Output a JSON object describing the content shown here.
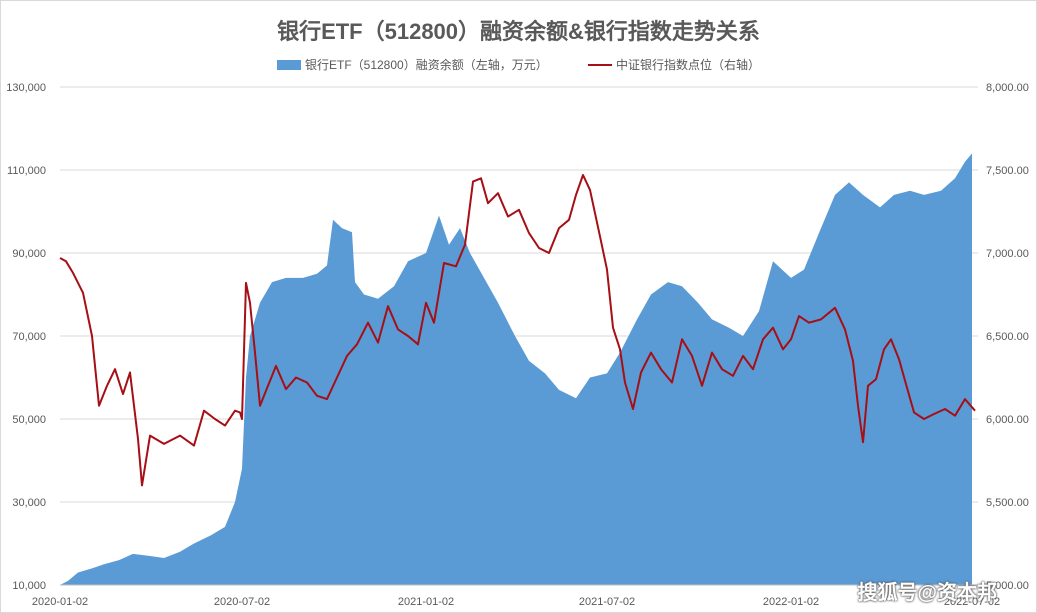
{
  "chart_data": {
    "type": "area+line",
    "title": "银行ETF（512800）融资余额&银行指数走势关系",
    "series": [
      {
        "name": "银行ETF（512800）融资余额（左轴，万元）",
        "kind": "area",
        "axis": "left",
        "color": "#5b9bd5",
        "points": [
          [
            "2020-01-02",
            10000
          ],
          [
            "2020-01-10",
            11000
          ],
          [
            "2020-01-20",
            13000
          ],
          [
            "2020-02-03",
            14000
          ],
          [
            "2020-02-15",
            15000
          ],
          [
            "2020-03-01",
            16000
          ],
          [
            "2020-03-15",
            17500
          ],
          [
            "2020-04-01",
            17000
          ],
          [
            "2020-04-15",
            16500
          ],
          [
            "2020-05-01",
            18000
          ],
          [
            "2020-05-15",
            20000
          ],
          [
            "2020-06-01",
            22000
          ],
          [
            "2020-06-15",
            24000
          ],
          [
            "2020-06-25",
            30000
          ],
          [
            "2020-07-02",
            38000
          ],
          [
            "2020-07-06",
            60000
          ],
          [
            "2020-07-10",
            70000
          ],
          [
            "2020-07-20",
            78000
          ],
          [
            "2020-08-01",
            83000
          ],
          [
            "2020-08-15",
            84000
          ],
          [
            "2020-09-01",
            84000
          ],
          [
            "2020-09-15",
            85000
          ],
          [
            "2020-09-25",
            87000
          ],
          [
            "2020-10-01",
            98000
          ],
          [
            "2020-10-10",
            96000
          ],
          [
            "2020-10-20",
            95000
          ],
          [
            "2020-10-23",
            83000
          ],
          [
            "2020-11-01",
            80000
          ],
          [
            "2020-11-15",
            79000
          ],
          [
            "2020-12-01",
            82000
          ],
          [
            "2020-12-15",
            88000
          ],
          [
            "2021-01-02",
            90000
          ],
          [
            "2021-01-15",
            99000
          ],
          [
            "2021-01-25",
            92000
          ],
          [
            "2021-02-05",
            96000
          ],
          [
            "2021-02-15",
            90000
          ],
          [
            "2021-03-01",
            84000
          ],
          [
            "2021-03-15",
            78000
          ],
          [
            "2021-04-01",
            70000
          ],
          [
            "2021-04-15",
            64000
          ],
          [
            "2021-05-01",
            61000
          ],
          [
            "2021-05-15",
            57000
          ],
          [
            "2021-06-01",
            55000
          ],
          [
            "2021-06-15",
            60000
          ],
          [
            "2021-07-02",
            61000
          ],
          [
            "2021-07-15",
            66000
          ],
          [
            "2021-08-01",
            74000
          ],
          [
            "2021-08-15",
            80000
          ],
          [
            "2021-09-01",
            83000
          ],
          [
            "2021-09-15",
            82000
          ],
          [
            "2021-10-01",
            78000
          ],
          [
            "2021-10-15",
            74000
          ],
          [
            "2021-11-01",
            72000
          ],
          [
            "2021-11-15",
            70000
          ],
          [
            "2021-12-01",
            76000
          ],
          [
            "2021-12-15",
            88000
          ],
          [
            "2022-01-02",
            84000
          ],
          [
            "2022-01-15",
            86000
          ],
          [
            "2022-02-01",
            96000
          ],
          [
            "2022-02-15",
            104000
          ],
          [
            "2022-03-01",
            107000
          ],
          [
            "2022-03-15",
            104000
          ],
          [
            "2022-04-01",
            101000
          ],
          [
            "2022-04-15",
            104000
          ],
          [
            "2022-05-01",
            105000
          ],
          [
            "2022-05-15",
            104000
          ],
          [
            "2022-06-01",
            105000
          ],
          [
            "2022-06-15",
            108000
          ],
          [
            "2022-06-25",
            112000
          ],
          [
            "2022-07-02",
            114000
          ]
        ]
      },
      {
        "name": "中证银行指数点位（右轴）",
        "kind": "line",
        "axis": "right",
        "color": "#a50f15",
        "points": [
          [
            "2020-01-02",
            6970
          ],
          [
            "2020-01-08",
            6950
          ],
          [
            "2020-01-15",
            6880
          ],
          [
            "2020-01-25",
            6760
          ],
          [
            "2020-02-03",
            6500
          ],
          [
            "2020-02-10",
            6080
          ],
          [
            "2020-02-18",
            6200
          ],
          [
            "2020-02-26",
            6300
          ],
          [
            "2020-03-05",
            6150
          ],
          [
            "2020-03-12",
            6280
          ],
          [
            "2020-03-20",
            5880
          ],
          [
            "2020-03-24",
            5600
          ],
          [
            "2020-04-01",
            5900
          ],
          [
            "2020-04-15",
            5850
          ],
          [
            "2020-05-01",
            5900
          ],
          [
            "2020-05-15",
            5840
          ],
          [
            "2020-05-25",
            6050
          ],
          [
            "2020-06-05",
            6000
          ],
          [
            "2020-06-15",
            5960
          ],
          [
            "2020-06-25",
            6050
          ],
          [
            "2020-06-30",
            6040
          ],
          [
            "2020-07-02",
            6000
          ],
          [
            "2020-07-06",
            6820
          ],
          [
            "2020-07-10",
            6700
          ],
          [
            "2020-07-15",
            6400
          ],
          [
            "2020-07-20",
            6080
          ],
          [
            "2020-07-28",
            6200
          ],
          [
            "2020-08-05",
            6320
          ],
          [
            "2020-08-15",
            6180
          ],
          [
            "2020-08-25",
            6250
          ],
          [
            "2020-09-05",
            6220
          ],
          [
            "2020-09-15",
            6140
          ],
          [
            "2020-09-25",
            6120
          ],
          [
            "2020-10-05",
            6250
          ],
          [
            "2020-10-15",
            6380
          ],
          [
            "2020-10-25",
            6450
          ],
          [
            "2020-11-05",
            6580
          ],
          [
            "2020-11-15",
            6460
          ],
          [
            "2020-11-25",
            6680
          ],
          [
            "2020-12-05",
            6540
          ],
          [
            "2020-12-15",
            6500
          ],
          [
            "2020-12-25",
            6450
          ],
          [
            "2021-01-02",
            6700
          ],
          [
            "2021-01-10",
            6580
          ],
          [
            "2021-01-20",
            6940
          ],
          [
            "2021-02-01",
            6920
          ],
          [
            "2021-02-10",
            7050
          ],
          [
            "2021-02-18",
            7430
          ],
          [
            "2021-02-26",
            7450
          ],
          [
            "2021-03-05",
            7300
          ],
          [
            "2021-03-15",
            7360
          ],
          [
            "2021-03-25",
            7220
          ],
          [
            "2021-04-05",
            7260
          ],
          [
            "2021-04-15",
            7120
          ],
          [
            "2021-04-25",
            7030
          ],
          [
            "2021-05-05",
            7000
          ],
          [
            "2021-05-15",
            7150
          ],
          [
            "2021-05-25",
            7200
          ],
          [
            "2021-06-01",
            7350
          ],
          [
            "2021-06-08",
            7470
          ],
          [
            "2021-06-15",
            7380
          ],
          [
            "2021-06-25",
            7100
          ],
          [
            "2021-07-02",
            6900
          ],
          [
            "2021-07-08",
            6550
          ],
          [
            "2021-07-15",
            6420
          ],
          [
            "2021-07-20",
            6220
          ],
          [
            "2021-07-28",
            6060
          ],
          [
            "2021-08-05",
            6280
          ],
          [
            "2021-08-15",
            6400
          ],
          [
            "2021-08-25",
            6300
          ],
          [
            "2021-09-05",
            6220
          ],
          [
            "2021-09-15",
            6480
          ],
          [
            "2021-09-25",
            6380
          ],
          [
            "2021-10-05",
            6200
          ],
          [
            "2021-10-15",
            6400
          ],
          [
            "2021-10-25",
            6300
          ],
          [
            "2021-11-05",
            6260
          ],
          [
            "2021-11-15",
            6380
          ],
          [
            "2021-11-25",
            6300
          ],
          [
            "2021-12-05",
            6480
          ],
          [
            "2021-12-15",
            6550
          ],
          [
            "2021-12-25",
            6420
          ],
          [
            "2022-01-02",
            6480
          ],
          [
            "2022-01-10",
            6620
          ],
          [
            "2022-01-20",
            6580
          ],
          [
            "2022-02-01",
            6600
          ],
          [
            "2022-02-15",
            6670
          ],
          [
            "2022-02-25",
            6540
          ],
          [
            "2022-03-05",
            6350
          ],
          [
            "2022-03-10",
            6080
          ],
          [
            "2022-03-15",
            5860
          ],
          [
            "2022-03-20",
            6200
          ],
          [
            "2022-03-28",
            6240
          ],
          [
            "2022-04-05",
            6420
          ],
          [
            "2022-04-12",
            6480
          ],
          [
            "2022-04-20",
            6360
          ],
          [
            "2022-04-27",
            6210
          ],
          [
            "2022-05-05",
            6040
          ],
          [
            "2022-05-15",
            6000
          ],
          [
            "2022-05-25",
            6030
          ],
          [
            "2022-06-05",
            6060
          ],
          [
            "2022-06-15",
            6020
          ],
          [
            "2022-06-25",
            6120
          ],
          [
            "2022-07-05",
            6050
          ]
        ]
      }
    ],
    "x_ticks": [
      "2020-01-02",
      "2020-07-02",
      "2021-01-02",
      "2021-07-02",
      "2022-01-02",
      "2022-07-02"
    ],
    "y_left_ticks": [
      "10,000",
      "30,000",
      "50,000",
      "70,000",
      "90,000",
      "110,000",
      "130,000"
    ],
    "y_right_ticks": [
      "5,000.00",
      "5,500.00",
      "6,000.00",
      "6,500.00",
      "7,000.00",
      "7,500.00",
      "8,000.00"
    ],
    "y_left_range": [
      10000,
      130000
    ],
    "y_right_range": [
      5000,
      8000
    ],
    "x_range": [
      "2020-01-02",
      "2022-07-08"
    ],
    "grid": "horizontal",
    "legend_placement": "top-center"
  },
  "watermark": "搜狐号@资本邦"
}
